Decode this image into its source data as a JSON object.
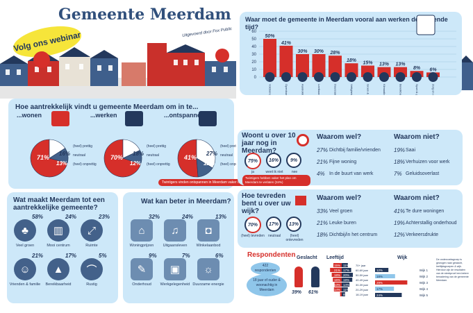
{
  "header": {
    "title": "Gemeente Meerdam",
    "webinar": "Volg ons webinar",
    "banner": "Uitgevoerd door Fox Public"
  },
  "colors": {
    "red": "#d62f2a",
    "navy": "#23385c",
    "panel": "#cde8f9"
  },
  "attract": {
    "title": "Hoe aantrekkelijk vindt u gemeente Meerdam om in te...",
    "cats": [
      {
        "label": "...wonen",
        "icon": "house-icon",
        "values": [
          71,
          16,
          13
        ]
      },
      {
        "label": "...werken",
        "icon": "desk-icon",
        "values": [
          70,
          18,
          12
        ]
      },
      {
        "label": "...ontspannen",
        "icon": "relax-icon",
        "values": [
          41,
          27,
          12
        ]
      }
    ],
    "legend": [
      "(heel) prettig",
      "neutraal",
      "(heel) onprettig"
    ],
    "note": "Twintigers vinden ontspannen in Meerdam vaker onprettig (41%)"
  },
  "work_chart": {
    "title": "Waar moet de gemeente in Meerdam vooral aan werken de komende tijd?",
    "ticks": [
      "0",
      "10",
      "20",
      "30",
      "40",
      "50",
      "60"
    ]
  },
  "chart_data": [
    {
      "type": "bar",
      "title": "Waar moet de gemeente in Meerdam vooral aan werken de komende tijd?",
      "categories": [
        "Voldoende woningen",
        "Openbaar vervoer goed houden",
        "Aantrekkelijk centrum",
        "Leefbaarheid",
        "Duurzaamheid / schone energie",
        "Veiligheid",
        "Groen & natuur",
        "Klimaatbestendig worden",
        "Bereikbaarheid",
        "Sport & gezondheid",
        "Zorg en welzijn"
      ],
      "values": [
        50,
        41,
        30,
        30,
        28,
        18,
        15,
        13,
        13,
        8,
        6
      ],
      "labels": [
        "50%",
        "41%",
        "30%",
        "30%",
        "28%",
        "18%",
        "15%",
        "13%",
        "13%",
        "8%",
        "6%"
      ],
      "ylim": [
        0,
        60
      ]
    },
    {
      "type": "pie",
      "title": "...wonen",
      "categories": [
        "(heel) prettig",
        "neutraal",
        "(heel) onprettig"
      ],
      "values": [
        71,
        16,
        13
      ]
    },
    {
      "type": "pie",
      "title": "...werken",
      "categories": [
        "(heel) prettig",
        "neutraal",
        "(heel) onprettig"
      ],
      "values": [
        70,
        18,
        12
      ]
    },
    {
      "type": "pie",
      "title": "...ontspannen",
      "categories": [
        "(heel) prettig",
        "neutraal",
        "(heel) onprettig"
      ],
      "values": [
        41,
        27,
        12
      ]
    },
    {
      "type": "bar",
      "title": "Leeftijd",
      "categories": [
        "70+ jaar",
        "60-69 jaar",
        "50-59 jaar",
        "40-49 jaar",
        "30-39 jaar",
        "20-29 jaar",
        "18-19 jaar"
      ],
      "series": [
        {
          "name": "man",
          "values": [
            15,
            21,
            18,
            16,
            13,
            14,
            3
          ]
        },
        {
          "name": "vrouw",
          "values": [
            11,
            17,
            20,
            19,
            14,
            11,
            6
          ]
        }
      ]
    },
    {
      "type": "bar",
      "title": "Wijk",
      "categories": [
        "Wijk 1",
        "Wijk 2",
        "Wijk 3",
        "Wijk 4",
        "Wijk 5"
      ],
      "values": [
        12,
        18,
        29,
        17,
        24
      ]
    }
  ],
  "stay": {
    "question": "Woont u over 10 jaar nog in Meerdam?",
    "circles": [
      {
        "value": "75%",
        "label": "ja"
      },
      {
        "value": "16%",
        "label": "weet ik niet"
      },
      {
        "value": "9%",
        "label": "nee"
      }
    ],
    "note": "Twintigers hebben vaker het plan om Meerdam te verlaten (34%)",
    "why_title": "Waarom wel?",
    "why": [
      {
        "p": "27%",
        "t": "Dichtbij familie/vrienden"
      },
      {
        "p": "21%",
        "t": "Fijne woning"
      },
      {
        "p": "4%",
        "t": "In de buurt van werk"
      }
    ],
    "whynot_title": "Waarom niet?",
    "whynot": [
      {
        "p": "19%",
        "t": "Saai"
      },
      {
        "p": "18%",
        "t": "Verhuizen voor werk"
      },
      {
        "p": "7%",
        "t": "Geluidsoverlast"
      }
    ]
  },
  "satisfied": {
    "question": "Hoe tevreden bent u over uw wijk?",
    "circles": [
      {
        "value": "70%",
        "label": "(heel) tevreden"
      },
      {
        "value": "17%",
        "label": "neutraal"
      },
      {
        "value": "13%",
        "label": "(heel) ontevreden"
      }
    ],
    "why_title": "Waarom wel?",
    "why": [
      {
        "p": "33%",
        "t": "Veel groen"
      },
      {
        "p": "21%",
        "t": "Leuke buren"
      },
      {
        "p": "18%",
        "t": "Dichtbij/in het centrum"
      }
    ],
    "whynot_title": "Waarom niet?",
    "whynot": [
      {
        "p": "41%",
        "t": "Te dure woningen"
      },
      {
        "p": "19%",
        "t": "Achterstallig onderhoud"
      },
      {
        "p": "12%",
        "t": "Verkeersdrukte"
      }
    ]
  },
  "makes": {
    "title": "Wat maakt Meerdam tot een aantrekkelijke gemeente?",
    "items": [
      {
        "p": "58%",
        "label": "Veel groen",
        "icon": "tree-icon",
        "glyph": "♣"
      },
      {
        "p": "24%",
        "label": "Mooi centrum",
        "icon": "buildings-icon",
        "glyph": "▥"
      },
      {
        "p": "23%",
        "label": "Ruimte",
        "icon": "expand-icon",
        "glyph": "⤢"
      },
      {
        "p": "21%",
        "label": "Vrienden & familie",
        "icon": "people-icon",
        "glyph": "☺"
      },
      {
        "p": "17%",
        "label": "Bereikbaarheid",
        "icon": "road-icon",
        "glyph": "▲"
      },
      {
        "p": "5%",
        "label": "Rustig",
        "icon": "bench-icon",
        "glyph": "⌒"
      }
    ]
  },
  "better": {
    "title": "Wat kan beter in Meerdam?",
    "items": [
      {
        "p": "32%",
        "label": "Woningprijzen",
        "icon": "house-icon",
        "glyph": "⌂"
      },
      {
        "p": "24%",
        "label": "Uitgaansleven",
        "icon": "cocktail-icon",
        "glyph": "♫"
      },
      {
        "p": "13%",
        "label": "Winkelaanbod",
        "icon": "bag-icon",
        "glyph": "◘"
      },
      {
        "p": "9%",
        "label": "Onderhoud",
        "icon": "wrench-icon",
        "glyph": "✎"
      },
      {
        "p": "7%",
        "label": "Werkgelegenheid",
        "icon": "briefcase-icon",
        "glyph": "▣"
      },
      {
        "p": "6%",
        "label": "Duurzame energie",
        "icon": "bulb-icon",
        "glyph": "☼"
      }
    ]
  },
  "respondents": {
    "title": "Respondenten",
    "count": "422",
    "count_label": "respondenten",
    "criteria": "18 jaar of ouder & woonachtig in Meerdam",
    "gender_title": "Geslacht",
    "gender": [
      {
        "p": "39%",
        "icon": "man-icon"
      },
      {
        "p": "61%",
        "icon": "woman-icon"
      }
    ],
    "age_title": "Leeftijd",
    "age": [
      {
        "label": "70+ jaar",
        "a": "15%",
        "b": "11%"
      },
      {
        "label": "60-69 jaar",
        "a": "21%",
        "b": "17%"
      },
      {
        "label": "50-59 jaar",
        "a": "18%",
        "b": "20%"
      },
      {
        "label": "40-49 jaar",
        "a": "16%",
        "b": "19%"
      },
      {
        "label": "30-39 jaar",
        "a": "13%",
        "b": "14%"
      },
      {
        "label": "20-29 jaar",
        "a": "14%",
        "b": "11%"
      },
      {
        "label": "18-19 jaar",
        "a": "3%",
        "b": "6%"
      }
    ],
    "district_title": "Wijk",
    "districts": [
      {
        "label": "Wijk 1",
        "p": "12%"
      },
      {
        "label": "Wijk 2",
        "p": "18%"
      },
      {
        "label": "Wijk 3",
        "p": "29%"
      },
      {
        "label": "Wijk 4",
        "p": "17%"
      },
      {
        "label": "Wijk 5",
        "p": "24%"
      }
    ],
    "footnote": "De onderzoeksgroep is gewogen naar geslacht, leeftijdsgroepen & wijk. Hierdoor zijn de resultaten van de steekproef een betere benadering van de gemeente Meerdam."
  }
}
